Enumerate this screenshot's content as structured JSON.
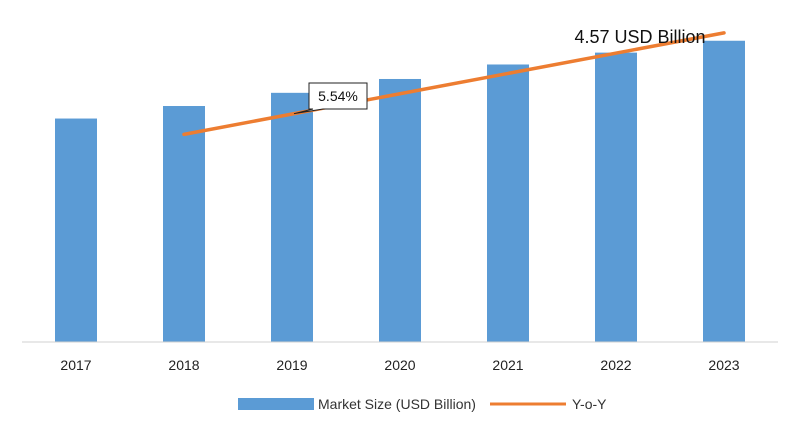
{
  "chart_data": {
    "type": "bar",
    "categories": [
      "2017",
      "2018",
      "2019",
      "2020",
      "2021",
      "2022",
      "2023"
    ],
    "series": [
      {
        "name": "Market Size (USD Billion)",
        "type": "bar",
        "color": "#5B9BD5",
        "values": [
          3.39,
          3.58,
          3.78,
          3.99,
          4.21,
          4.39,
          4.57
        ]
      },
      {
        "name": "Y-o-Y",
        "type": "line",
        "color": "#ED7D31",
        "x": [
          "2018",
          "2023"
        ],
        "values": [
          3.15,
          4.69
        ]
      }
    ],
    "ylim": [
      0,
      4.9
    ],
    "grid": false,
    "legend": "bottom",
    "annotations": [
      {
        "text": "5.54%",
        "style": "callout",
        "category": "2019"
      },
      {
        "text": "4.57 USD Billion",
        "style": "label",
        "category": "2022"
      }
    ]
  }
}
